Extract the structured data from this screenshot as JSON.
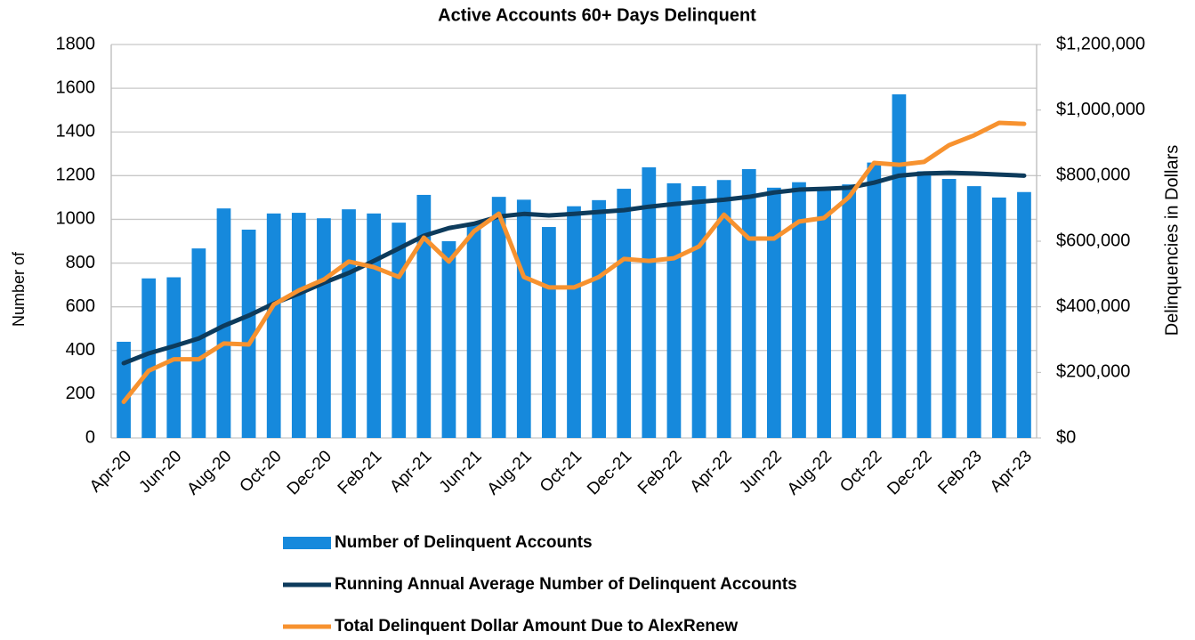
{
  "chart_data": {
    "type": "bar_line_combo",
    "title": "Active Accounts 60+ Days Delinquent",
    "y_label": "Number of",
    "y2_label": "Delinquencies in Dollars",
    "categories": [
      "Apr-20",
      null,
      "Jun-20",
      null,
      "Aug-20",
      null,
      "Oct-20",
      null,
      "Dec-20",
      null,
      "Feb-21",
      null,
      "Apr-21",
      null,
      "Jun-21",
      null,
      "Aug-21",
      null,
      "Oct-21",
      null,
      "Dec-21",
      null,
      "Feb-22",
      null,
      "Apr-22",
      null,
      "Jun-22",
      null,
      "Aug-22",
      null,
      "Oct-22",
      null,
      "Dec-22",
      null,
      "Feb-23",
      null,
      "Apr-23"
    ],
    "series": [
      {
        "name": "Number of Delinquent Accounts",
        "type": "bar",
        "color": "#1689dc",
        "values": [
          440,
          730,
          735,
          867,
          1050,
          953,
          1027,
          1030,
          1005,
          1046,
          1027,
          985,
          1112,
          900,
          980,
          1103,
          1090,
          965,
          1060,
          1088,
          1140,
          1238,
          1165,
          1152,
          1180,
          1230,
          1145,
          1170,
          1140,
          1160,
          1260,
          1572,
          1220,
          1185,
          1152,
          1100,
          1125
        ]
      },
      {
        "name": "Running Annual Average Number of Delinquent Accounts",
        "type": "line",
        "color": "#0d3b5c",
        "values": [
          342,
          387,
          420,
          455,
          513,
          560,
          615,
          660,
          710,
          755,
          810,
          867,
          925,
          960,
          980,
          1013,
          1025,
          1018,
          1025,
          1034,
          1042,
          1058,
          1070,
          1080,
          1090,
          1103,
          1123,
          1136,
          1140,
          1145,
          1168,
          1200,
          1210,
          1213,
          1210,
          1205,
          1200
        ]
      },
      {
        "name": "Total Delinquent Dollar Amount Due to AlexRenew",
        "type": "line",
        "color": "#f7922f",
        "axis": "y2",
        "values": [
          110000,
          205000,
          240000,
          240000,
          288000,
          285000,
          407000,
          450000,
          483000,
          538000,
          521000,
          491000,
          611000,
          538000,
          630000,
          684000,
          491000,
          459000,
          459000,
          491000,
          546000,
          540000,
          548000,
          584000,
          681000,
          608000,
          608000,
          660000,
          671000,
          735000,
          839000,
          833000,
          842000,
          893000,
          923000,
          961000,
          958000
        ]
      }
    ],
    "ylim": [
      0,
      1800
    ],
    "yticks": [
      0,
      200,
      400,
      600,
      800,
      1000,
      1200,
      1400,
      1600,
      1800
    ],
    "y2lim": [
      0,
      1200000
    ],
    "y2ticks": [
      {
        "value": 0,
        "label": "$0"
      },
      {
        "value": 200000,
        "label": "$200,000"
      },
      {
        "value": 400000,
        "label": "$400,000"
      },
      {
        "value": 600000,
        "label": "$600,000"
      },
      {
        "value": 800000,
        "label": "$800,000"
      },
      {
        "value": 1000000,
        "label": "$1,000,000"
      },
      {
        "value": 1200000,
        "label": "$1,200,000"
      }
    ],
    "grid": true,
    "legend": "bottom"
  }
}
